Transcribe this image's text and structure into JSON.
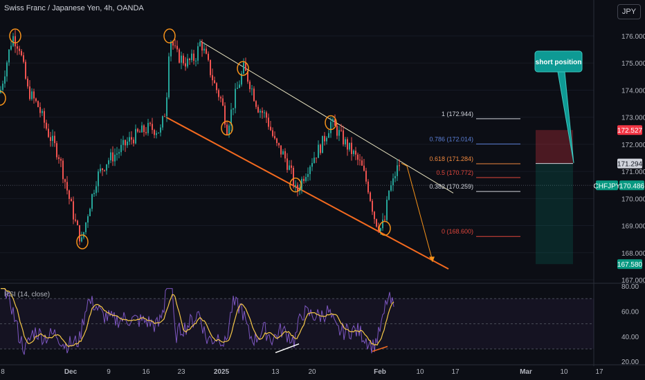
{
  "header": {
    "title": "Swiss Franc / Japanese Yen, 4h, OANDA",
    "currency": "JPY"
  },
  "rsi": {
    "label": "RSI (14, close)"
  },
  "annotation": {
    "callout": "short position"
  },
  "fib_levels": [
    {
      "label": "1 (172.944)",
      "price": 172.944,
      "color": "#d1d4dc"
    },
    {
      "label": "0.786 (172.014)",
      "price": 172.014,
      "color": "#5b7fd6"
    },
    {
      "label": "0.618 (171.284)",
      "price": 171.284,
      "color": "#f0883e"
    },
    {
      "label": "0.5 (170.772)",
      "price": 170.772,
      "color": "#e0463c"
    },
    {
      "label": "0.382 (170.259)",
      "price": 170.259,
      "color": "#d1d4dc"
    },
    {
      "label": "0 (168.600)",
      "price": 168.6,
      "color": "#e0463c"
    }
  ],
  "price_tags": [
    {
      "label": "172.527",
      "price": 172.527,
      "bg": "#f23645",
      "fg": "#ffffff"
    },
    {
      "label": "171.294",
      "price": 171.294,
      "bg": "#d1d4dc",
      "fg": "#131722"
    },
    {
      "label": "CHFJPY",
      "price": 170.486,
      "bg": "#089981",
      "fg": "#ffffff"
    },
    {
      "label": "170.486",
      "price": 170.486,
      "bg": "#089981",
      "fg": "#ffffff"
    },
    {
      "label": "167.580",
      "price": 167.58,
      "bg": "#089981",
      "fg": "#ffffff"
    }
  ],
  "colors": {
    "up": "#26a69a",
    "down": "#ef5350",
    "channel_top": "#e8e3c0",
    "channel_bottom": "#f46a1f",
    "rsi_line": "#7e57c2",
    "rsi_ma": "#f7c948",
    "circle": "#f7931a"
  },
  "chart_data": [
    {
      "type": "candlestick",
      "title": "Swiss Franc / Japanese Yen, 4h, OANDA",
      "ylabel": "JPY",
      "ylim": [
        166.6,
        176.7
      ],
      "y_ticks": [
        "176.000",
        "175.000",
        "174.000",
        "173.000",
        "172.000",
        "171.000",
        "170.000",
        "169.000",
        "168.000",
        "167.000"
      ],
      "x_ticks": [
        "8",
        "Dec",
        "9",
        "16",
        "23",
        "2025",
        "13",
        "20",
        "Feb",
        "10",
        "17",
        "Mar",
        "10",
        "17"
      ],
      "last_price": 170.486,
      "path_points": [
        [
          0,
          173.9
        ],
        [
          18,
          176.0
        ],
        [
          28,
          175.6
        ],
        [
          40,
          174.0
        ],
        [
          55,
          173.4
        ],
        [
          70,
          172.4
        ],
        [
          85,
          171.6
        ],
        [
          100,
          170.0
        ],
        [
          110,
          169.0
        ],
        [
          118,
          168.4
        ],
        [
          128,
          169.6
        ],
        [
          140,
          170.8
        ],
        [
          155,
          171.4
        ],
        [
          170,
          171.7
        ],
        [
          185,
          172.1
        ],
        [
          200,
          172.4
        ],
        [
          215,
          172.6
        ],
        [
          232,
          172.5
        ],
        [
          240,
          173.4
        ],
        [
          245,
          176.0
        ],
        [
          255,
          175.3
        ],
        [
          270,
          175.0
        ],
        [
          282,
          175.2
        ],
        [
          290,
          175.8
        ],
        [
          300,
          175.0
        ],
        [
          310,
          174.2
        ],
        [
          320,
          173.6
        ],
        [
          328,
          172.6
        ],
        [
          340,
          173.8
        ],
        [
          352,
          174.8
        ],
        [
          362,
          174.2
        ],
        [
          372,
          173.4
        ],
        [
          385,
          173.0
        ],
        [
          398,
          172.0
        ],
        [
          410,
          171.6
        ],
        [
          420,
          171.0
        ],
        [
          428,
          170.2
        ],
        [
          438,
          170.8
        ],
        [
          450,
          171.4
        ],
        [
          465,
          172.0
        ],
        [
          478,
          172.8
        ],
        [
          490,
          172.4
        ],
        [
          500,
          172.0
        ],
        [
          512,
          171.6
        ],
        [
          522,
          171.2
        ],
        [
          532,
          170.4
        ],
        [
          542,
          169.2
        ],
        [
          550,
          168.9
        ],
        [
          556,
          169.2
        ],
        [
          562,
          170.3
        ],
        [
          567,
          170.5
        ],
        [
          572,
          171.0
        ],
        [
          578,
          171.3
        ]
      ],
      "projection": [
        [
          580,
          171.3
        ],
        [
          588,
          171.2
        ],
        [
          625,
          167.7
        ]
      ],
      "channel_upper": {
        "from": [
          290,
          175.8
        ],
        "to": [
          655,
          170.2
        ]
      },
      "channel_lower": {
        "from": [
          240,
          173.0
        ],
        "to": [
          648,
          167.4
        ]
      },
      "position_box": {
        "entry": 171.294,
        "stop": 172.527,
        "target": 167.58,
        "label": "short position"
      },
      "marked_pivots": [
        [
          0,
          173.7
        ],
        [
          22,
          176.0
        ],
        [
          119,
          168.4
        ],
        [
          245,
          176.0
        ],
        [
          351,
          174.8
        ],
        [
          328,
          172.6
        ],
        [
          427,
          170.5
        ],
        [
          478,
          172.8
        ],
        [
          556,
          168.9
        ]
      ]
    },
    {
      "type": "line",
      "title": "RSI (14, close)",
      "ylim": [
        20,
        80
      ],
      "y_ticks": [
        "80.00",
        "60.00",
        "40.00",
        "20.00"
      ],
      "bands": [
        70,
        50,
        30
      ],
      "divergence_lines": [
        [
          [
            398,
            27
          ],
          [
            432,
            34
          ]
        ],
        [
          [
            538,
            28
          ],
          [
            560,
            32
          ]
        ]
      ]
    }
  ]
}
